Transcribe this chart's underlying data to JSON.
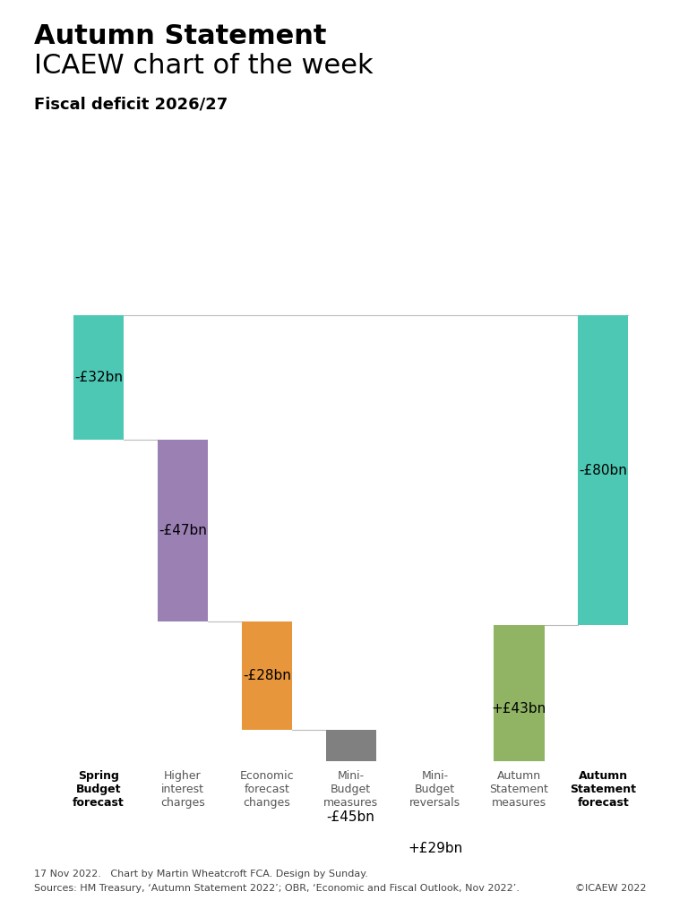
{
  "title_bold": "Autumn Statement",
  "title_normal": "ICAEW chart of the week",
  "subtitle": "Fiscal deficit 2026/27",
  "categories": [
    "Spring\nBudget\nforecast",
    "Higher\ninterest\ncharges",
    "Economic\nforecast\nchanges",
    "Mini-\nBudget\nmeasures",
    "Mini-\nBudget\nreversals",
    "Autumn\nStatement\nmeasures",
    "Autumn\nStatement\nforecast"
  ],
  "bold_categories": [
    0,
    6
  ],
  "values": [
    -32,
    -47,
    -28,
    -45,
    29,
    43,
    -80
  ],
  "labels": [
    "-£32bn",
    "-£47bn",
    "-£28bn",
    "-£45bn",
    "+£29bn",
    "+£43bn",
    "-£80bn"
  ],
  "colors": [
    "#4dc8b4",
    "#9b80b4",
    "#e8963c",
    "#808080",
    "#5bc8e8",
    "#90b464",
    "#4dc8b4"
  ],
  "is_total": [
    true,
    false,
    false,
    false,
    false,
    false,
    true
  ],
  "bar_width": 0.6,
  "ymin": -115,
  "ymax": 8,
  "footnote_line1": "17 Nov 2022.   Chart by Martin Wheatcroft FCA. Design by Sunday.",
  "footnote_line2": "Sources: HM Treasury, ‘Autumn Statement 2022’; OBR, ‘Economic and Fiscal Outlook, Nov 2022’.",
  "copyright": "©ICAEW 2022",
  "background_color": "#ffffff",
  "connector_color": "#bbbbbb"
}
